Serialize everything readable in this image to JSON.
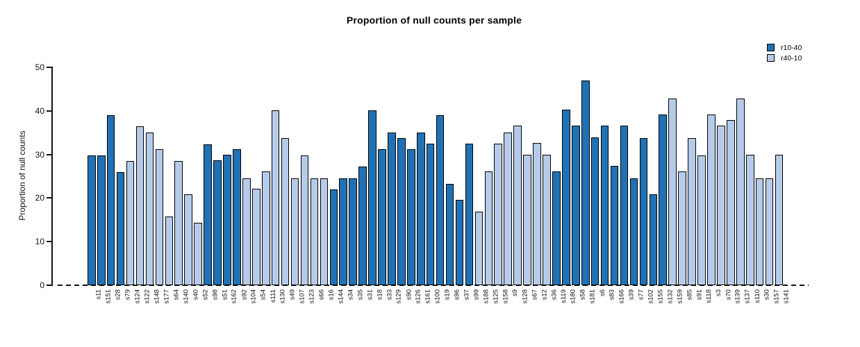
{
  "chart_data": {
    "type": "bar",
    "title": "Proportion of null counts per sample",
    "xlabel": "",
    "ylabel": "Proportion of null counts",
    "ylim": [
      0,
      50
    ],
    "yticks": [
      0,
      10,
      20,
      30,
      40,
      50
    ],
    "grid": false,
    "legend_position": "top-right",
    "zero_line_style": "dashed",
    "bar_border_color": "#000000",
    "groups": [
      {
        "name": "r10-40",
        "color": "#2171b5"
      },
      {
        "name": "r40-10",
        "color": "#b6cbe9"
      }
    ],
    "categories": [
      "s11",
      "s151",
      "s28",
      "s79",
      "s124",
      "s122",
      "s148",
      "s177",
      "s64",
      "s140",
      "s40",
      "s52",
      "s98",
      "s51",
      "s162",
      "s92",
      "s104",
      "s54",
      "s111",
      "s130",
      "s49",
      "s107",
      "s123",
      "s66",
      "s16",
      "s144",
      "s34",
      "s35",
      "s31",
      "s18",
      "s33",
      "s129",
      "s90",
      "s126",
      "s161",
      "s100",
      "s19",
      "s96",
      "s37",
      "s99",
      "s188",
      "s125",
      "s158",
      "s9",
      "s128",
      "s67",
      "s12",
      "s36",
      "s119",
      "s180",
      "s58",
      "s181",
      "s6",
      "s83",
      "s166",
      "s39",
      "s77",
      "s102",
      "s155",
      "s132",
      "s159",
      "s85",
      "s91",
      "s118",
      "s3",
      "s70",
      "s139",
      "s137",
      "s110",
      "s30",
      "s157",
      "s141"
    ],
    "bar_groups": [
      "r10-40",
      "r10-40",
      "r10-40",
      "r10-40",
      "r40-10",
      "r40-10",
      "r40-10",
      "r40-10",
      "r40-10",
      "r40-10",
      "r40-10",
      "r40-10",
      "r10-40",
      "r10-40",
      "r10-40",
      "r10-40",
      "r40-10",
      "r40-10",
      "r40-10",
      "r40-10",
      "r40-10",
      "r40-10",
      "r40-10",
      "r40-10",
      "r40-10",
      "r10-40",
      "r10-40",
      "r10-40",
      "r10-40",
      "r10-40",
      "r10-40",
      "r10-40",
      "r10-40",
      "r10-40",
      "r10-40",
      "r10-40",
      "r10-40",
      "r10-40",
      "r10-40",
      "r10-40",
      "r40-10",
      "r40-10",
      "r40-10",
      "r40-10",
      "r40-10",
      "r40-10",
      "r40-10",
      "r40-10",
      "r10-40",
      "r10-40",
      "r10-40",
      "r10-40",
      "r10-40",
      "r10-40",
      "r10-40",
      "r10-40",
      "r10-40",
      "r10-40",
      "r10-40",
      "r10-40",
      "r40-10",
      "r40-10",
      "r40-10",
      "r40-10",
      "r40-10",
      "r40-10",
      "r40-10",
      "r40-10",
      "r40-10",
      "r40-10",
      "r40-10",
      "r40-10"
    ],
    "values": [
      29.8,
      29.8,
      39.0,
      26.0,
      28.5,
      36.4,
      35.0,
      31.2,
      15.7,
      28.5,
      20.8,
      14.4,
      32.4,
      28.7,
      30.0,
      31.2,
      24.5,
      22.1,
      26.1,
      40.2,
      33.8,
      24.5,
      29.8,
      24.5,
      24.5,
      22.0,
      24.5,
      24.5,
      27.3,
      40.2,
      31.2,
      35.1,
      33.8,
      31.2,
      35.1,
      32.5,
      39.0,
      23.3,
      19.6,
      32.5,
      16.9,
      26.1,
      32.5,
      35.0,
      36.6,
      29.9,
      32.6,
      29.9,
      26.1,
      40.3,
      36.6,
      47.0,
      33.9,
      36.6,
      27.4,
      36.6,
      24.5,
      33.8,
      20.8,
      39.1,
      42.9,
      26.1,
      33.8,
      29.8,
      39.1,
      36.6,
      37.9,
      42.9,
      29.9,
      24.6,
      24.6,
      29.9
    ]
  }
}
